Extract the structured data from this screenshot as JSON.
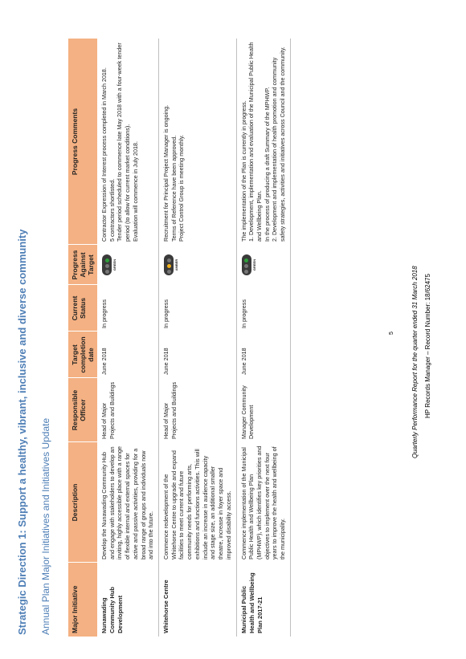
{
  "heading": "Strategic Direction 1: Support a healthy, vibrant, inclusive and diverse community",
  "subheading": "Annual Plan Major Initiatives and Initiatives Update",
  "columns": [
    "Major Initiative",
    "Description",
    "Responsible Officer",
    "Target completion date",
    "Current Status",
    "Progress Against Target",
    "Progress Comments"
  ],
  "rows": [
    {
      "initiative": "Nunawading Community Hub Development",
      "description": "Develop the Nunawading Community Hub and engage with stakeholders to develop an inviting, highly accessible place with a range of flexible internal and external spaces for active and passive activities, providing for a broad range of groups and individuals now and into the future.",
      "officer": "Head of Major Projects and Buildings",
      "target": "June 2018",
      "status": "In progress",
      "progress": "GREEN",
      "progress_color": "#2e9e3a",
      "comments": [
        "Contractor Expression of Interest process completed in March 2018.",
        "5 contractors shortlisted.",
        "Tender period scheduled to commence late May 2018 with a four-week tender period (to allow for current market conditions).",
        "Evaluation will commence in July 2018."
      ]
    },
    {
      "initiative": "Whitehorse Centre",
      "description": "Commence redevelopment of the Whitehorse Centre to upgrade and expand facilities to meet current and future community needs for performing arts, exhibitions and functions activities. This will include an increase in audience capacity and stage size, an additional smaller theatre, increase in foyer space and improved disability access.",
      "officer": "Head of Major Projects and Buildings",
      "target": "June 2018",
      "status": "In progress",
      "progress": "AMBER",
      "progress_color": "#f2b21b",
      "comments": [
        "Recruitment for Principal Project Manager is ongoing.",
        "Terms of Reference have been approved.",
        "Project Control Group is meeting monthly."
      ]
    },
    {
      "initiative": "Municipal Public Health and Wellbeing Plan 2017-21",
      "description": "Commence implementation of the Municipal Public Health and Wellbeing Plan (MPHWP), which identifies key priorities and objectives to implement over the next four years to improve the health and wellbeing of the municipality.",
      "officer": "Manager Community Development",
      "target": "June 2018",
      "status": "In progress",
      "progress": "GREEN",
      "progress_color": "#2e9e3a",
      "comments": [
        "The implementation of the Plan is currently in progress.",
        "1. Development, implementation and evaluation of the Municipal Public Health and Wellbeing Plan.",
        "In the process of producing a draft Summary of the MPHWP.",
        "2. Development and implementation of health promotion and community safety strategies, activities and initiatives across Council and the community."
      ]
    }
  ],
  "page_number": "5",
  "footer_line1": "Quarterly Performance Report for the quarter ended 31 March 2018",
  "footer_line2": "HP Records Manager – Record Number: 18/62475"
}
